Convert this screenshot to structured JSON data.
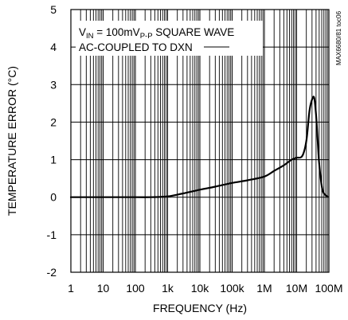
{
  "chart_data": {
    "type": "line",
    "xlabel": "FREQUENCY (Hz)",
    "ylabel": "TEMPERATURE ERROR (°C)",
    "xscale": "log",
    "xlim": [
      1,
      100000000
    ],
    "ylim": [
      -2,
      5
    ],
    "grid": true,
    "x_ticks": [
      1,
      10,
      100,
      1000,
      10000,
      100000,
      1000000,
      10000000,
      100000000
    ],
    "x_tick_labels": [
      "1",
      "10",
      "100",
      "1k",
      "10k",
      "100k",
      "1M",
      "10M",
      "100M"
    ],
    "y_ticks": [
      -2,
      -1,
      0,
      1,
      2,
      3,
      4,
      5
    ],
    "y_tick_labels": [
      "-2",
      "-1",
      "0",
      "1",
      "2",
      "3",
      "4",
      "5"
    ],
    "annotation": {
      "line1_prefix": "V",
      "line1_sub1": "IN",
      "line1_mid": " = 100mV",
      "line1_sub2": "P-P",
      "line1_suffix": " SQUARE WAVE",
      "line2": "AC-COUPLED TO DXN"
    },
    "side_label": "MAX6680/81 toc06",
    "colors": {
      "line": "#000000",
      "grid": "#000000",
      "background": "#ffffff"
    },
    "series": [
      {
        "x": [
          1,
          10,
          100,
          300,
          1000,
          3000,
          10000,
          30000,
          100000,
          300000,
          1000000,
          2000000,
          4000000,
          7000000,
          10000000,
          15000000,
          20000000,
          25000000,
          30000000,
          35000000,
          40000000,
          45000000,
          50000000,
          60000000,
          70000000,
          90000000
        ],
        "y": [
          0,
          0,
          0,
          0,
          0.02,
          0.1,
          0.2,
          0.28,
          0.38,
          0.45,
          0.55,
          0.7,
          0.85,
          1.0,
          1.05,
          1.1,
          1.5,
          2.3,
          2.6,
          2.65,
          2.2,
          1.5,
          0.9,
          0.3,
          0.1,
          0.02
        ]
      }
    ]
  }
}
